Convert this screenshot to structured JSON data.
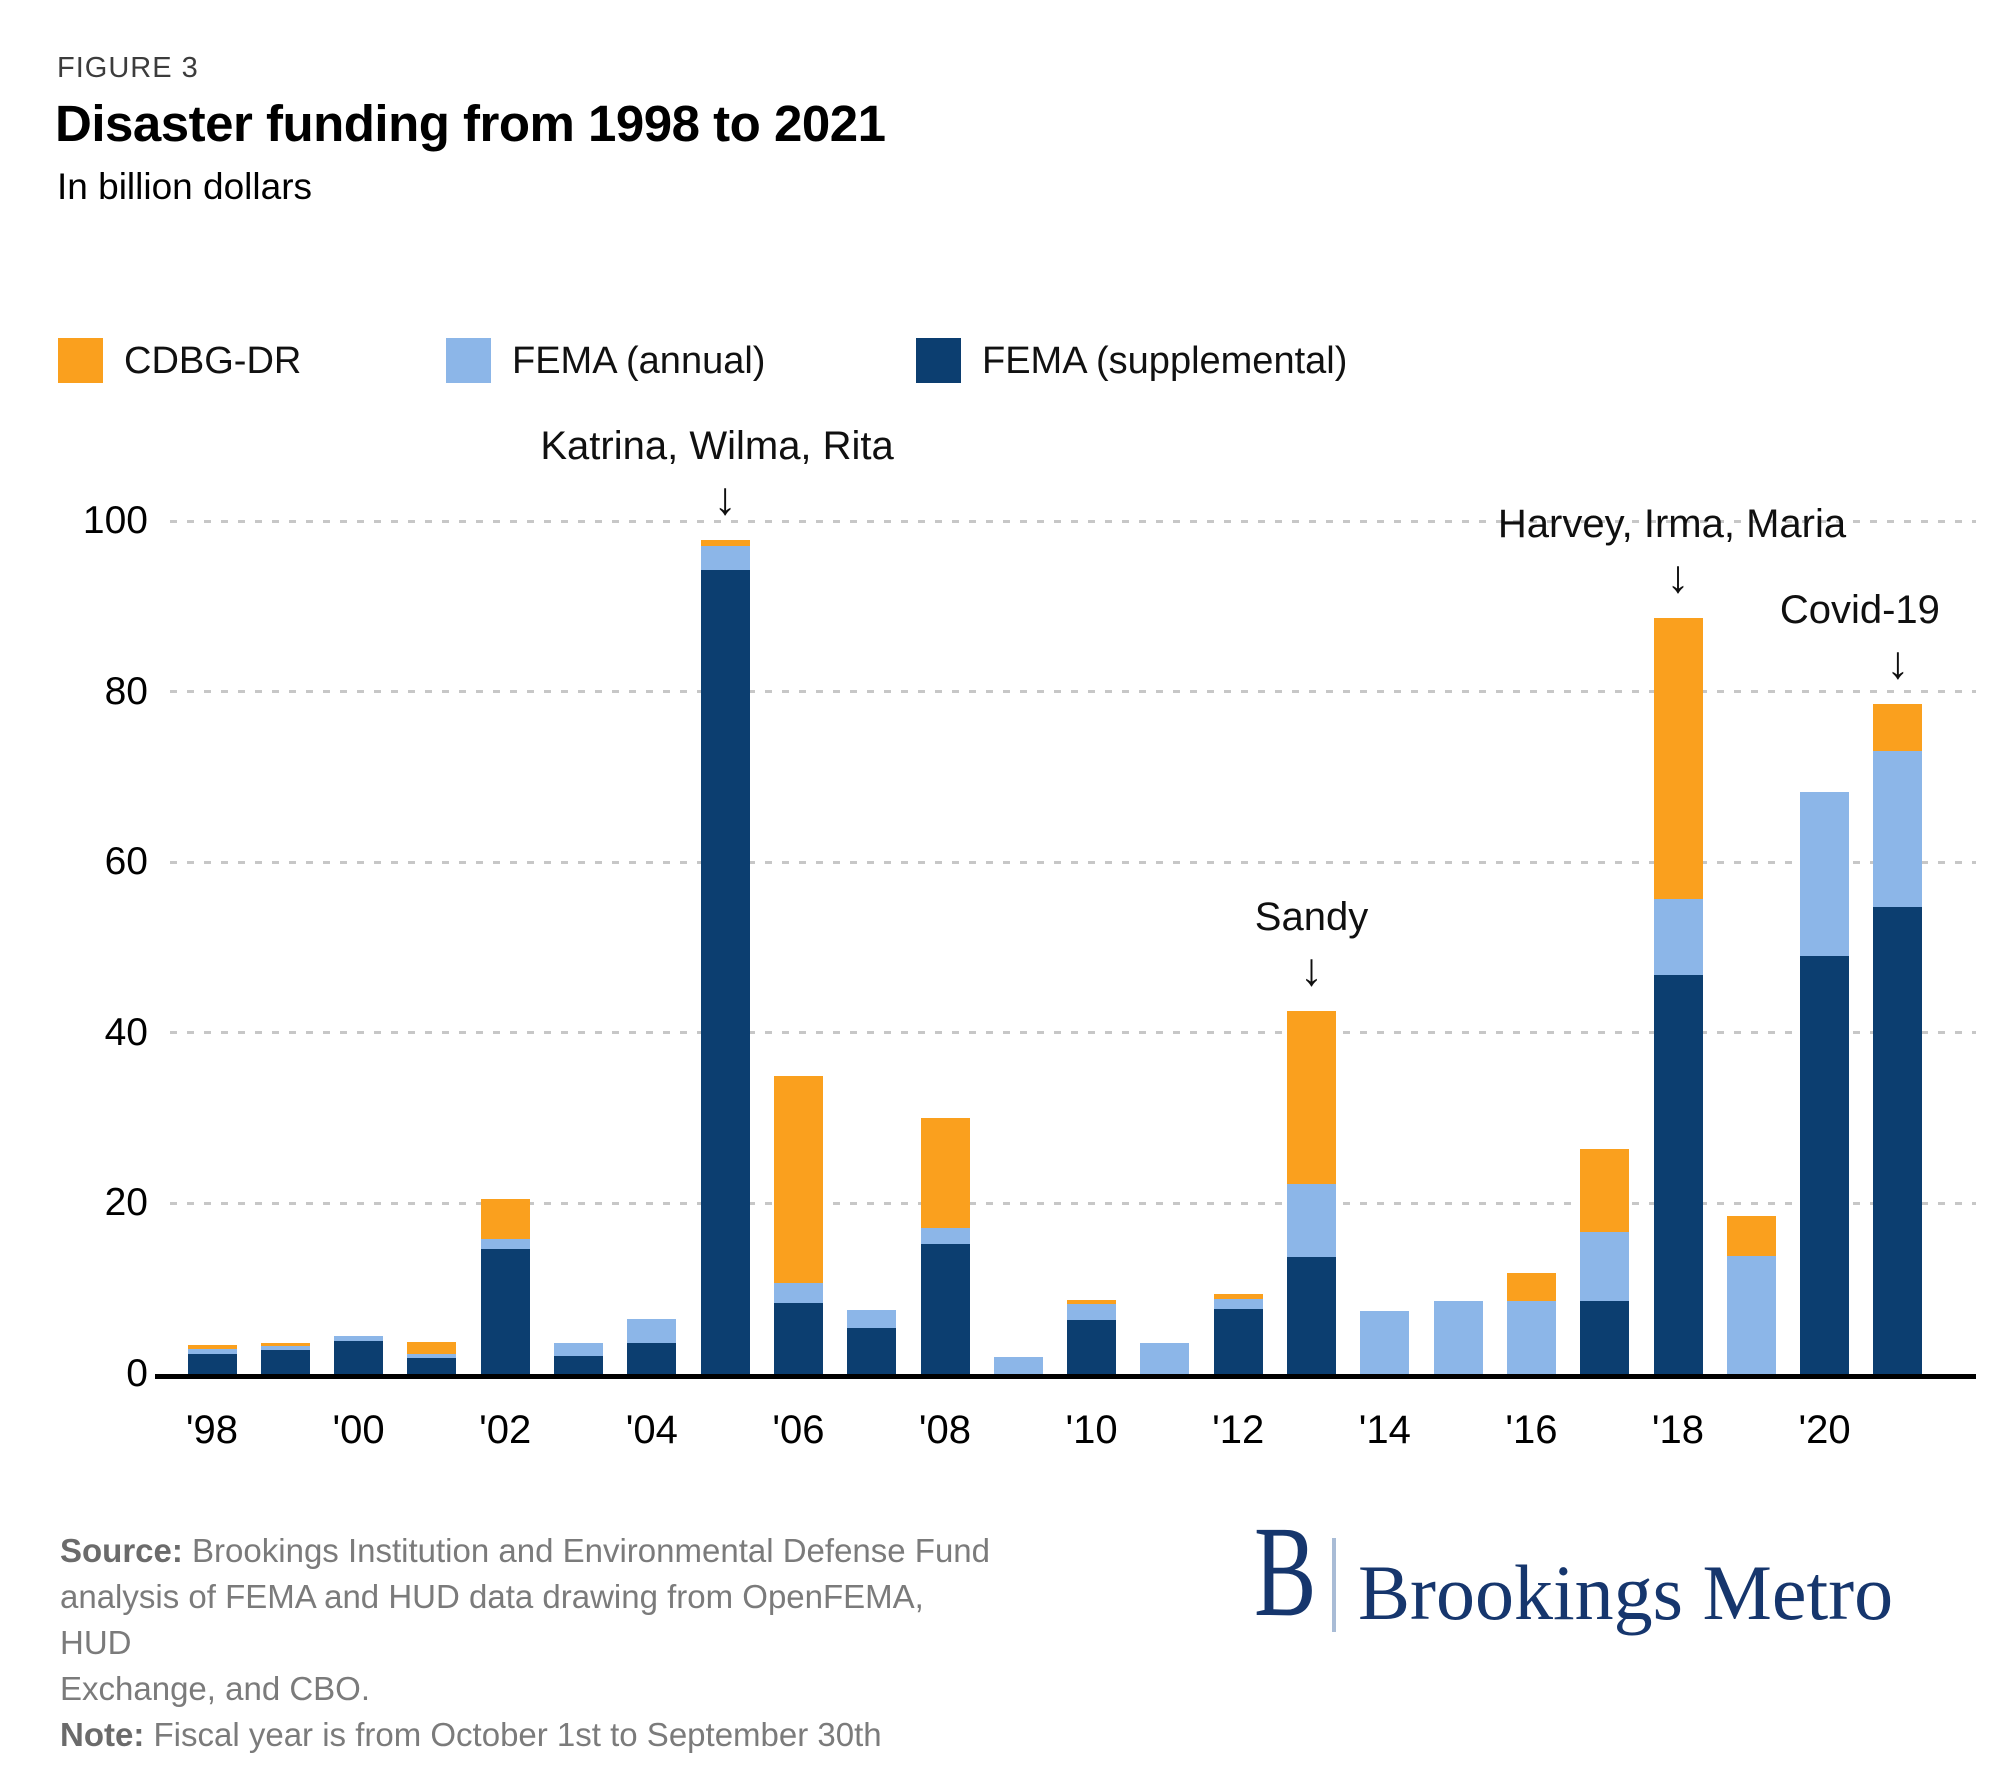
{
  "header": {
    "figure_label": "FIGURE 3",
    "title": "Disaster funding from 1998 to 2021",
    "subtitle": "In billion dollars"
  },
  "legend": {
    "items": [
      {
        "label": "CDBG-DR",
        "color": "#FAA01E"
      },
      {
        "label": "FEMA (annual)",
        "color": "#8CB6E8"
      },
      {
        "label": "FEMA (supplemental)",
        "color": "#0C3E70"
      }
    ]
  },
  "chart_data": {
    "type": "bar",
    "stacked": true,
    "title": "Disaster funding from 1998 to 2021",
    "ylabel": "In billion dollars",
    "ylim": [
      0,
      100
    ],
    "yticks": [
      0,
      20,
      40,
      60,
      80,
      100
    ],
    "grid": "dotted-horizontal",
    "legend_position": "top-left",
    "years": [
      1998,
      1999,
      2000,
      2001,
      2002,
      2003,
      2004,
      2005,
      2006,
      2007,
      2008,
      2009,
      2010,
      2011,
      2012,
      2013,
      2014,
      2015,
      2016,
      2017,
      2018,
      2019,
      2020,
      2021
    ],
    "series": [
      {
        "name": "FEMA (supplemental)",
        "color": "#0C3E70",
        "values": [
          2.4,
          2.8,
          3.9,
          1.9,
          14.6,
          2.1,
          3.6,
          94.2,
          8.3,
          5.4,
          15.2,
          0,
          6.3,
          0,
          7.6,
          13.7,
          0,
          0,
          0,
          8.6,
          46.8,
          0,
          49.0,
          54.8
        ]
      },
      {
        "name": "FEMA (annual)",
        "color": "#8CB6E8",
        "values": [
          0.5,
          0.5,
          0.6,
          0.4,
          1.2,
          1.5,
          2.8,
          2.9,
          2.4,
          2.1,
          1.9,
          2.0,
          1.9,
          3.6,
          1.2,
          8.6,
          7.4,
          8.5,
          8.6,
          8.1,
          8.9,
          13.8,
          19.2,
          18.2
        ]
      },
      {
        "name": "CDBG-DR",
        "color": "#FAA01E",
        "values": [
          0.5,
          0.3,
          0,
          1.4,
          4.7,
          0,
          0,
          0.7,
          24.2,
          0,
          12.9,
          0,
          0.5,
          0,
          0.6,
          20.3,
          0,
          0,
          3.2,
          9.7,
          32.9,
          4.7,
          0,
          5.6
        ]
      }
    ],
    "xtick_labels": [
      {
        "year": 1998,
        "label": "'98"
      },
      {
        "year": 2000,
        "label": "'00"
      },
      {
        "year": 2002,
        "label": "'02"
      },
      {
        "year": 2004,
        "label": "'04"
      },
      {
        "year": 2006,
        "label": "'06"
      },
      {
        "year": 2008,
        "label": "'08"
      },
      {
        "year": 2010,
        "label": "'10"
      },
      {
        "year": 2012,
        "label": "'12"
      },
      {
        "year": 2014,
        "label": "'14"
      },
      {
        "year": 2016,
        "label": "'16"
      },
      {
        "year": 2018,
        "label": "'18"
      },
      {
        "year": 2020,
        "label": "'20"
      }
    ],
    "annotations": [
      {
        "label": "Katrina, Wilma, Rita",
        "year": 2005,
        "dx": -8
      },
      {
        "label": "Sandy",
        "year": 2013,
        "dx": 0
      },
      {
        "label": "Harvey, Irma, Maria",
        "year": 2018,
        "dx": -6
      },
      {
        "label": "Covid-19",
        "year": 2021,
        "dx": -38
      }
    ]
  },
  "footer": {
    "source_label": "Source:",
    "source_lines": [
      "Brookings Institution and Environmental Defense Fund",
      "analysis of FEMA and HUD data drawing from OpenFEMA, HUD",
      "Exchange, and CBO."
    ],
    "note_label": "Note:",
    "note_text": "Fiscal year is from October 1st to September 30th"
  },
  "logo": {
    "mark": "B",
    "wordmark": "Brookings Metro"
  }
}
